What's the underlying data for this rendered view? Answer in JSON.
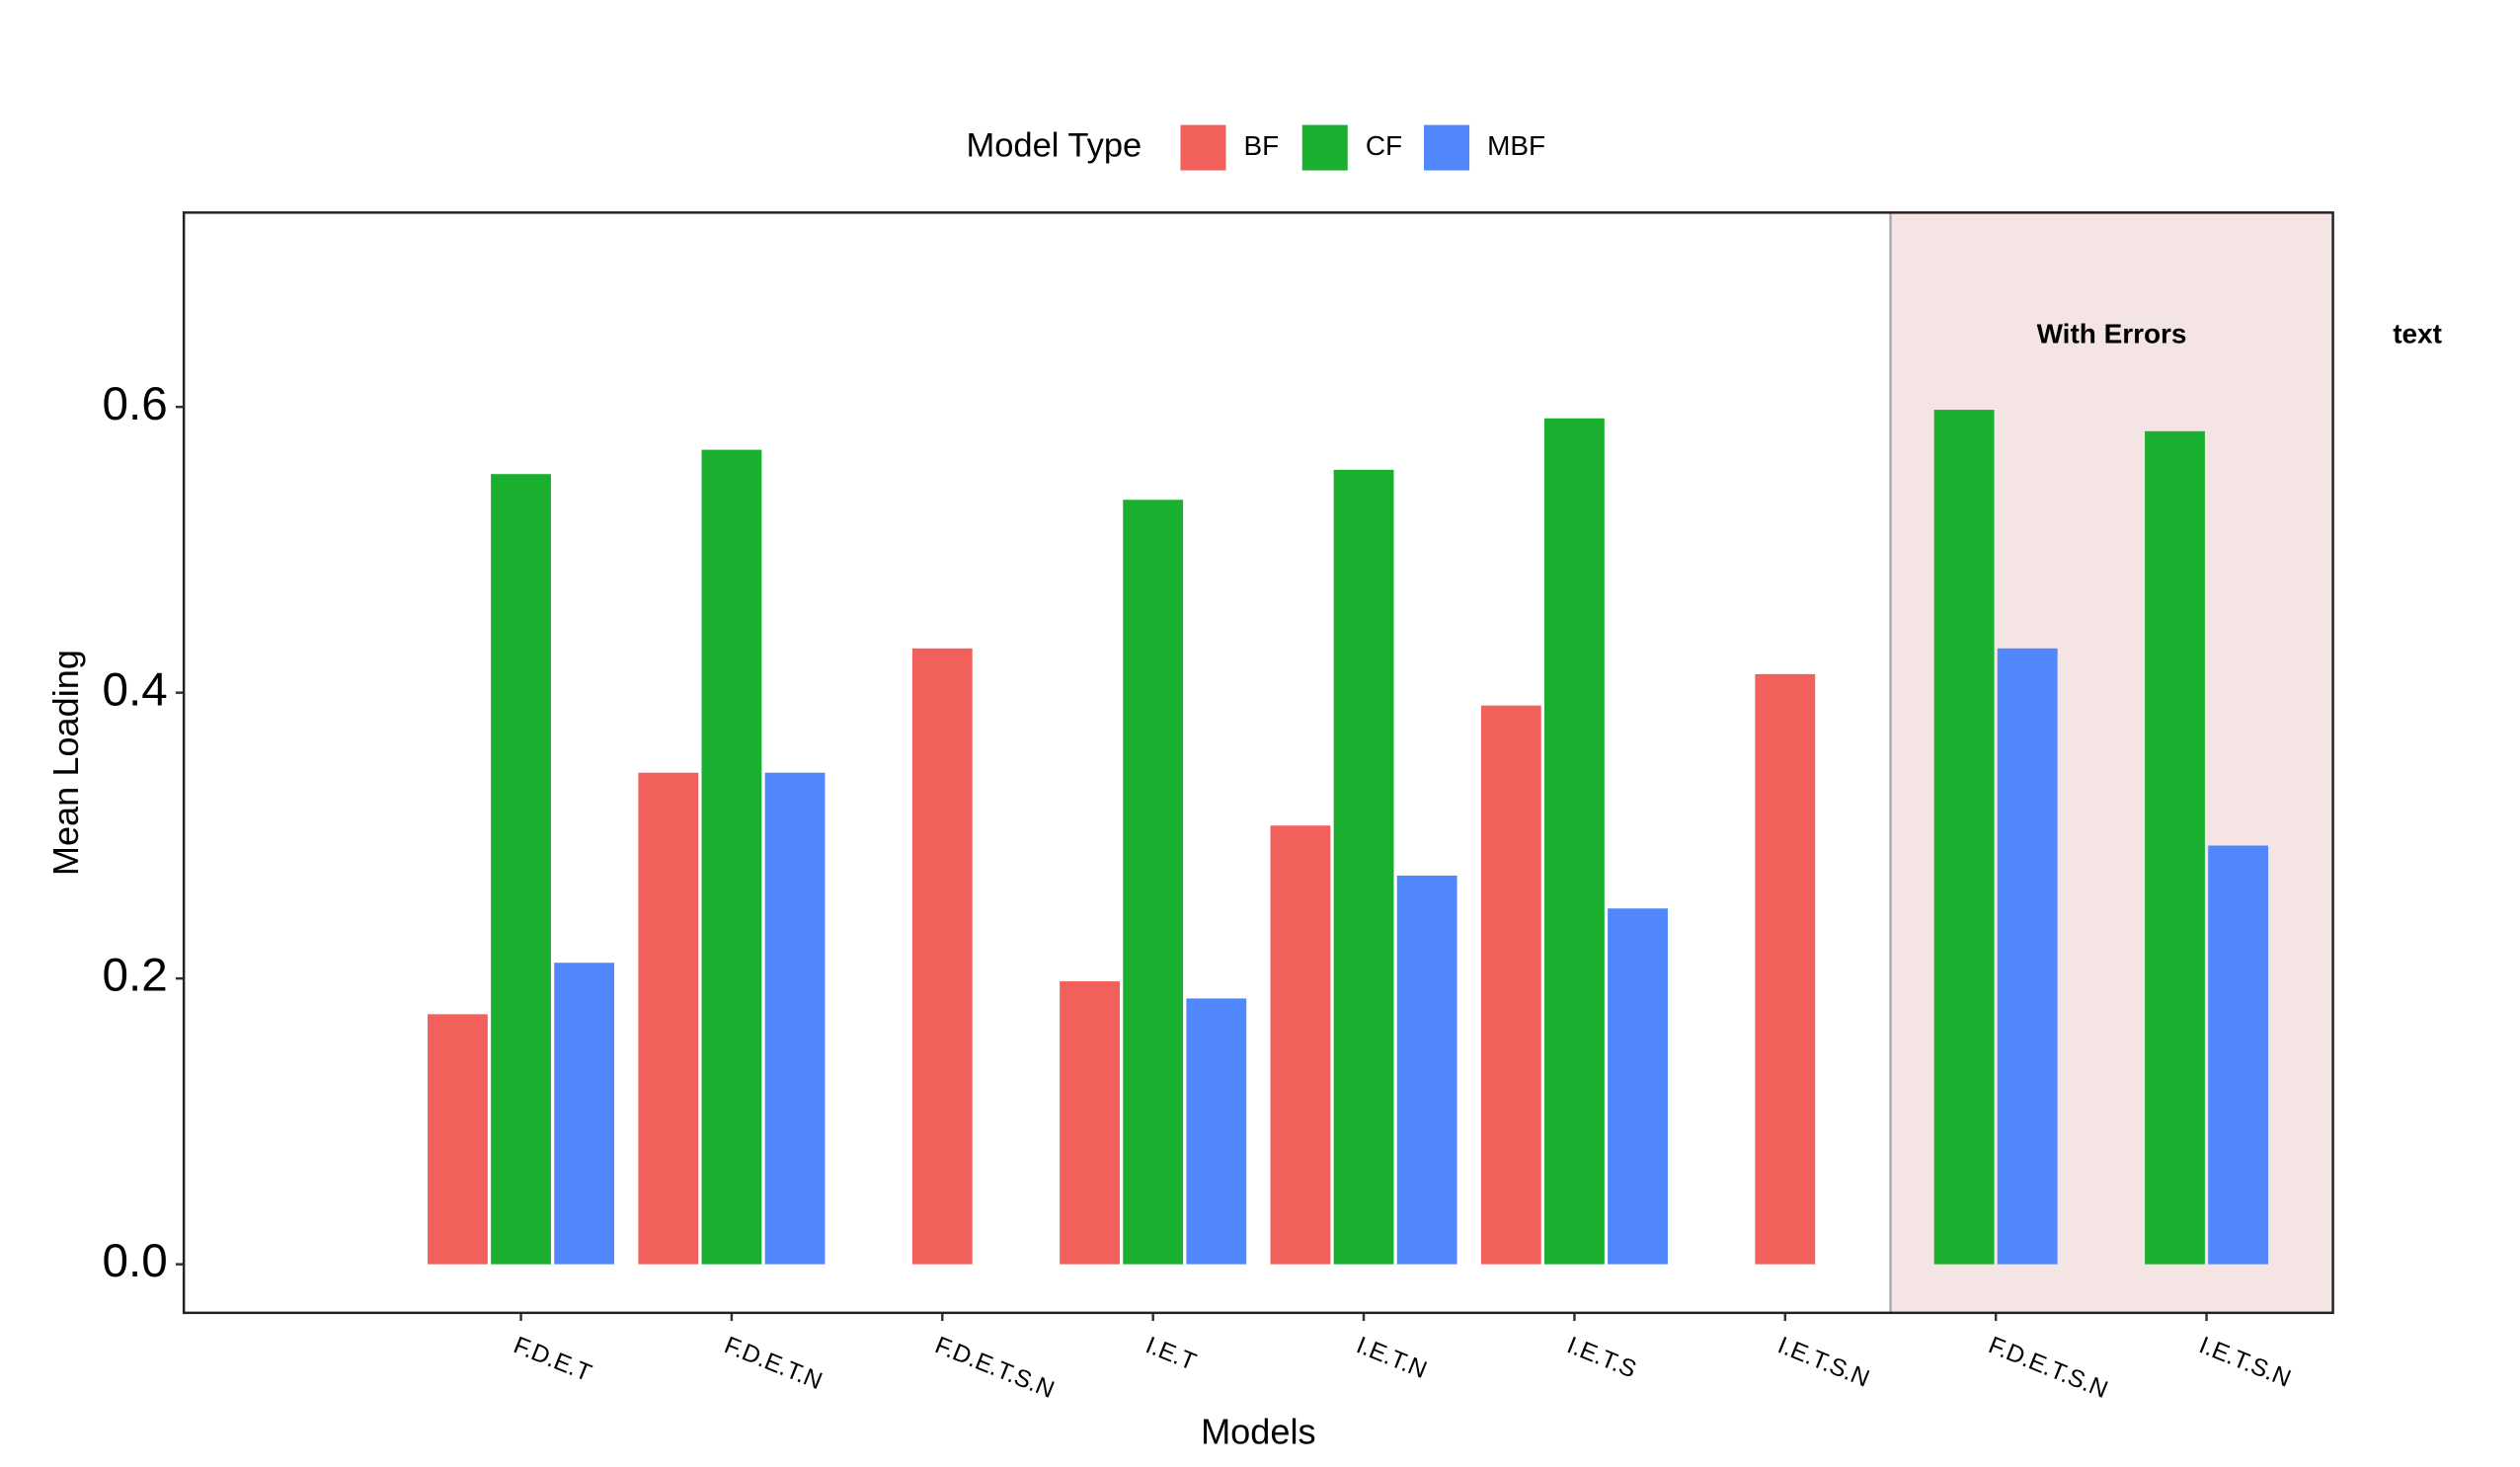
{
  "chart_data": {
    "type": "bar",
    "x_label": "Models",
    "y_label": "Mean Loading",
    "legend_title": "Model Type",
    "legend_position": "top",
    "categories": [
      null,
      "F.D.E.T",
      "F.D.E.T.N",
      "F.D.E.T.S.N",
      "I.E.T",
      "I.E.T.N",
      "I.E.T.S",
      "I.E.T.S.N",
      "F.D.E.T.S.N",
      "I.E.T.S.N"
    ],
    "series": [
      {
        "name": "BF",
        "color": "#f2605c",
        "values": [
          null,
          0.175,
          0.344,
          0.431,
          0.198,
          0.307,
          0.391,
          0.413,
          null,
          null
        ]
      },
      {
        "name": "CF",
        "color": "#1aaf2e",
        "values": [
          null,
          0.553,
          0.57,
          null,
          0.535,
          0.556,
          0.592,
          null,
          0.598,
          0.583
        ]
      },
      {
        "name": "MBF",
        "color": "#5087fc",
        "values": [
          null,
          0.211,
          0.344,
          null,
          0.186,
          0.272,
          0.249,
          null,
          0.431,
          0.293
        ]
      }
    ],
    "ylim": [
      -0.034,
      0.736
    ],
    "yticks": [
      {
        "value": 0,
        "label": "0.0"
      },
      0.2,
      0.4,
      0.6
    ],
    "grid": false,
    "shaded_from_category": 8,
    "shade_color": "#f5e4e4",
    "annotations": [
      "With Errors",
      "text"
    ]
  }
}
